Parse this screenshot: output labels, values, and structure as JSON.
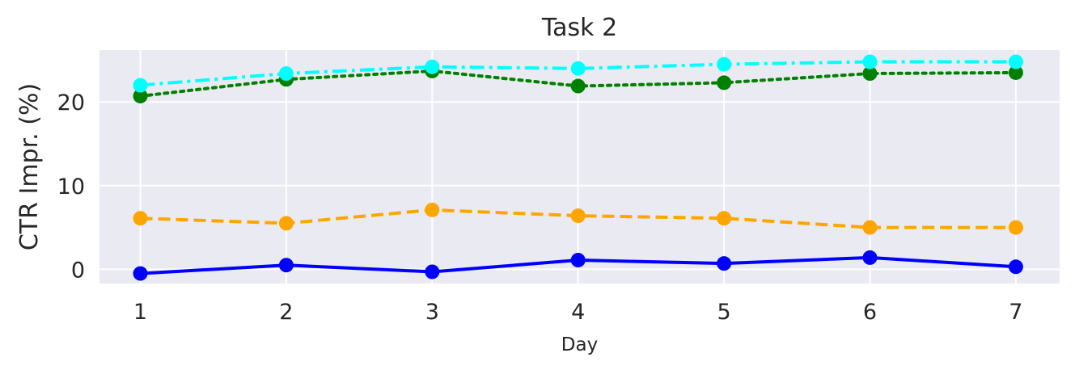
{
  "chart_data": {
    "type": "line",
    "title": "Task 2",
    "xlabel": "Day",
    "ylabel": "CTR Impr. (%)",
    "x": [
      1,
      2,
      3,
      4,
      5,
      6,
      7
    ],
    "x_ticks": [
      "1",
      "2",
      "3",
      "4",
      "5",
      "6",
      "7"
    ],
    "y_ticks": [
      "0",
      "10",
      "20"
    ],
    "y_tick_values": [
      0,
      10,
      20
    ],
    "xlim": [
      0.72,
      7.3
    ],
    "ylim": [
      -1.7,
      26.2
    ],
    "grid": true,
    "background_color": "#EAEAF2",
    "grid_color": "#FFFFFF",
    "series": [
      {
        "color": "#0000FF",
        "line_style": "solid",
        "marker": "circle",
        "values": [
          -0.5,
          0.5,
          -0.3,
          1.1,
          0.7,
          1.4,
          0.3
        ]
      },
      {
        "color": "#FFA500",
        "line_style": "dashed",
        "marker": "circle",
        "values": [
          6.1,
          5.5,
          7.1,
          6.4,
          6.1,
          5.0,
          5.0
        ]
      },
      {
        "color": "#008000",
        "line_style": "dotted",
        "marker": "circle",
        "values": [
          20.7,
          22.7,
          23.7,
          21.9,
          22.3,
          23.4,
          23.5
        ]
      },
      {
        "color": "#00FFFF",
        "line_style": "dashdot",
        "marker": "circle",
        "values": [
          22.0,
          23.4,
          24.2,
          24.0,
          24.5,
          24.8,
          24.8
        ]
      }
    ]
  }
}
